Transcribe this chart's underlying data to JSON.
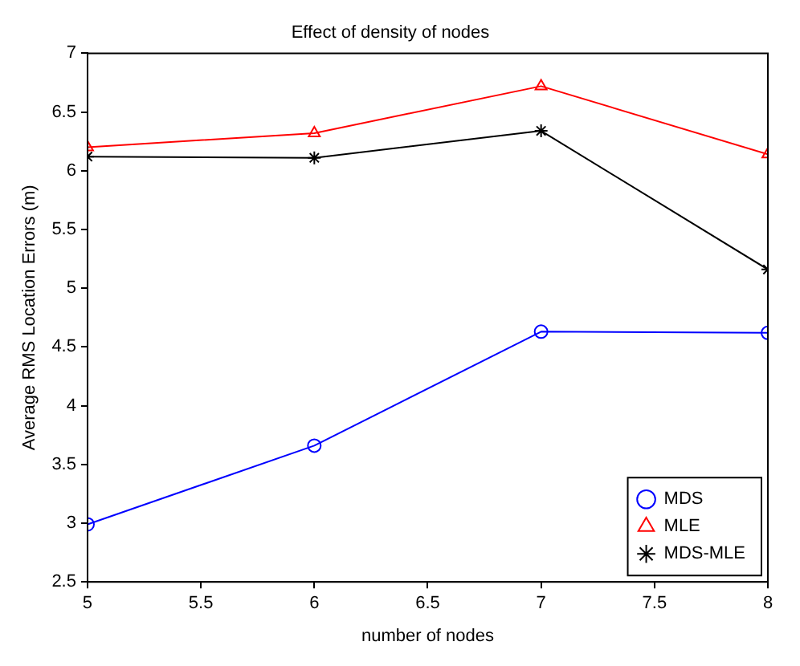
{
  "chart_data": {
    "type": "line",
    "title": "Effect of density of nodes",
    "xlabel": "number of nodes",
    "ylabel": "Average RMS Location Errors (m)",
    "x": [
      5,
      6,
      7,
      8
    ],
    "series": [
      {
        "name": "MDS",
        "color": "#0000ff",
        "marker": "circle",
        "values": [
          2.99,
          3.66,
          4.63,
          4.62
        ]
      },
      {
        "name": "MLE",
        "color": "#ff0000",
        "marker": "triangle",
        "values": [
          6.2,
          6.32,
          6.72,
          6.14
        ]
      },
      {
        "name": "MDS-MLE",
        "color": "#000000",
        "marker": "cross",
        "values": [
          6.12,
          6.11,
          6.34,
          5.16
        ]
      }
    ],
    "xlim": [
      5,
      8
    ],
    "xticks": [
      5,
      5.5,
      6,
      6.5,
      7,
      7.5,
      8
    ],
    "ylim": [
      2.5,
      7
    ],
    "yticks": [
      2.5,
      3,
      3.5,
      4,
      4.5,
      5,
      5.5,
      6,
      6.5,
      7
    ],
    "grid": false,
    "legend": "bottom right",
    "line_style": "solid"
  }
}
